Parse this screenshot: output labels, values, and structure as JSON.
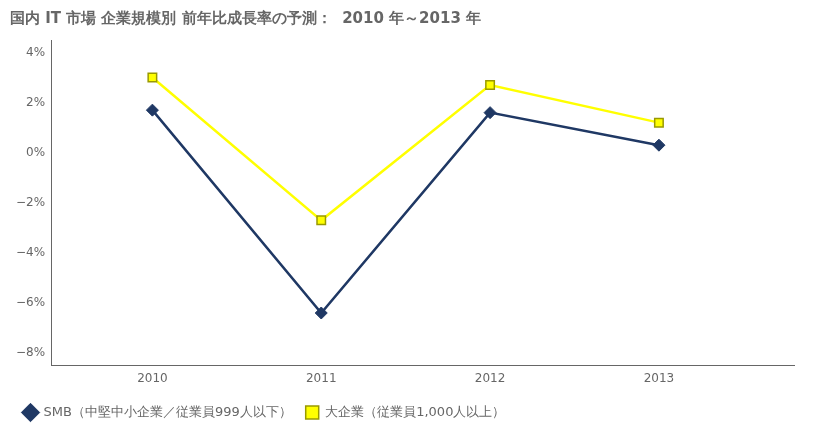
{
  "chart_data": {
    "type": "line",
    "title": "国内 IT 市場 企業規模別 前年比成長率の予測：  2010 年～2013 年",
    "x": [
      2010,
      2011,
      2012,
      2013
    ],
    "series": [
      {
        "name": "SMB（中堅中小企業／従業員999人以下）",
        "color": "#1F3864",
        "marker": "diamond",
        "values": [
          1.7,
          -6.4,
          1.6,
          0.3
        ]
      },
      {
        "name": "大企業（従業員1,000人以上）",
        "color": "#FFFF00",
        "marker": "square",
        "values": [
          3.0,
          -2.7,
          2.7,
          1.2
        ]
      }
    ],
    "xlim": [
      2009.4,
      2013.8
    ],
    "xticks": [
      2010,
      2011,
      2012,
      2013
    ],
    "ylim": [
      -8.5,
      4.5
    ],
    "yticks": [
      {
        "value": -8,
        "label": "−8%"
      },
      {
        "value": -6,
        "label": "−6%"
      },
      {
        "value": -4,
        "label": "−4%"
      },
      {
        "value": -2,
        "label": "−2%"
      },
      {
        "value": 0,
        "label": "0%"
      },
      {
        "value": 2,
        "label": "2%"
      },
      {
        "value": 4,
        "label": "4%"
      }
    ],
    "grid": false,
    "legend": "bottom"
  }
}
